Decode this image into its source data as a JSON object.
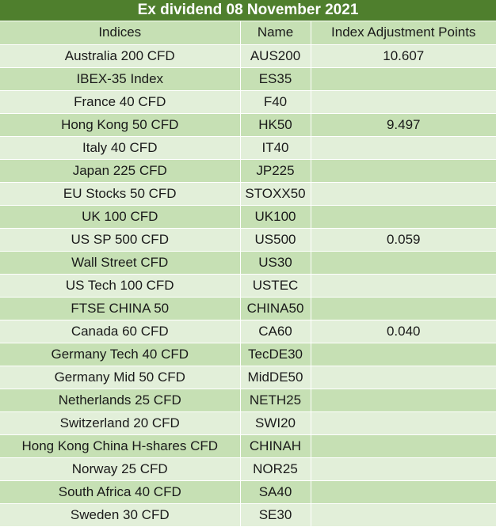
{
  "title": "Ex dividend 08 November 2021",
  "columns": [
    "Indices",
    "Name",
    "Index Adjustment Points"
  ],
  "rows": [
    {
      "index": "Australia 200 CFD",
      "name": "AUS200",
      "points": "10.607"
    },
    {
      "index": "IBEX-35 Index",
      "name": "ES35",
      "points": ""
    },
    {
      "index": "France 40 CFD",
      "name": "F40",
      "points": ""
    },
    {
      "index": "Hong Kong 50 CFD",
      "name": "HK50",
      "points": "9.497"
    },
    {
      "index": "Italy 40 CFD",
      "name": "IT40",
      "points": ""
    },
    {
      "index": "Japan 225 CFD",
      "name": "JP225",
      "points": ""
    },
    {
      "index": "EU Stocks 50 CFD",
      "name": "STOXX50",
      "points": ""
    },
    {
      "index": "UK 100 CFD",
      "name": "UK100",
      "points": ""
    },
    {
      "index": "US SP 500 CFD",
      "name": "US500",
      "points": "0.059"
    },
    {
      "index": "Wall Street CFD",
      "name": "US30",
      "points": ""
    },
    {
      "index": "US Tech 100 CFD",
      "name": "USTEC",
      "points": ""
    },
    {
      "index": "FTSE CHINA 50",
      "name": "CHINA50",
      "points": ""
    },
    {
      "index": "Canada 60 CFD",
      "name": "CA60",
      "points": "0.040"
    },
    {
      "index": "Germany Tech 40 CFD",
      "name": "TecDE30",
      "points": ""
    },
    {
      "index": "Germany Mid 50 CFD",
      "name": "MidDE50",
      "points": ""
    },
    {
      "index": "Netherlands 25 CFD",
      "name": "NETH25",
      "points": ""
    },
    {
      "index": "Switzerland 20 CFD",
      "name": "SWI20",
      "points": ""
    },
    {
      "index": "Hong Kong China H-shares CFD",
      "name": "CHINAH",
      "points": ""
    },
    {
      "index": "Norway 25 CFD",
      "name": "NOR25",
      "points": ""
    },
    {
      "index": "South Africa 40 CFD",
      "name": "SA40",
      "points": ""
    },
    {
      "index": "Sweden 30 CFD",
      "name": "SE30",
      "points": ""
    }
  ],
  "colors": {
    "title_bg": "#4f7f2d",
    "header_bg": "#c6e0b4",
    "row_light": "#e2efd9",
    "row_dark": "#c6e0b4"
  }
}
